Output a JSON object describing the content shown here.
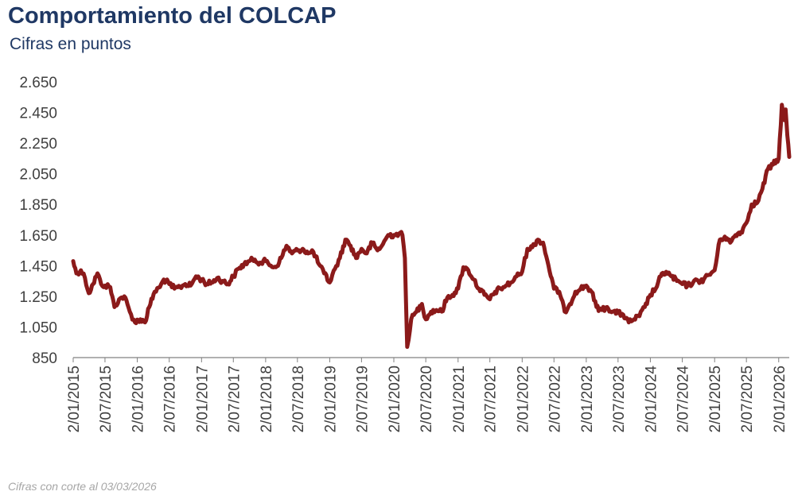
{
  "colors": {
    "title": "#1f3864",
    "line": "#8b1a1a",
    "axis": "#808080",
    "tick_text": "#404040",
    "footnote": "#a6a6a6"
  },
  "chart_data": {
    "type": "line",
    "title": "Comportamiento del COLCAP",
    "subtitle": "Cifras en puntos",
    "footnote": "Cifras con corte al 03/03/2026",
    "ylim": [
      850,
      2650
    ],
    "yticks": [
      850,
      1050,
      1250,
      1450,
      1650,
      1850,
      2050,
      2250,
      2450,
      2650
    ],
    "ytick_labels": [
      "850",
      "1.050",
      "1.250",
      "1.450",
      "1.650",
      "1.850",
      "2.050",
      "2.250",
      "2.450",
      "2.650"
    ],
    "xlim": [
      "2015-01-02",
      "2026-03-03"
    ],
    "xticks": [
      "2015-01-02",
      "2015-07-02",
      "2016-01-02",
      "2016-07-02",
      "2017-01-02",
      "2017-07-02",
      "2018-01-02",
      "2018-07-02",
      "2019-01-02",
      "2019-07-02",
      "2020-01-02",
      "2020-07-02",
      "2021-01-02",
      "2021-07-02",
      "2022-01-02",
      "2022-07-02",
      "2023-01-02",
      "2023-07-02",
      "2024-01-02",
      "2024-07-02",
      "2025-01-02",
      "2025-07-02",
      "2026-01-02"
    ],
    "xtick_labels": [
      "2/01/2015",
      "2/07/2015",
      "2/01/2016",
      "2/07/2016",
      "2/01/2017",
      "2/07/2017",
      "2/01/2018",
      "2/07/2018",
      "2/01/2019",
      "2/07/2019",
      "2/01/2020",
      "2/07/2020",
      "2/01/2021",
      "2/07/2021",
      "2/01/2022",
      "2/07/2022",
      "2/01/2023",
      "2/07/2023",
      "2/01/2024",
      "2/07/2024",
      "2/01/2025",
      "2/07/2025",
      "2/01/2026"
    ],
    "grid": false,
    "series": [
      {
        "points": [
          [
            "2015-01-02",
            1480
          ],
          [
            "2015-01-20",
            1400
          ],
          [
            "2015-02-15",
            1420
          ],
          [
            "2015-03-10",
            1370
          ],
          [
            "2015-04-01",
            1270
          ],
          [
            "2015-04-25",
            1330
          ],
          [
            "2015-05-20",
            1400
          ],
          [
            "2015-06-10",
            1330
          ],
          [
            "2015-07-02",
            1320
          ],
          [
            "2015-08-01",
            1310
          ],
          [
            "2015-08-25",
            1180
          ],
          [
            "2015-09-20",
            1230
          ],
          [
            "2015-10-20",
            1250
          ],
          [
            "2015-11-20",
            1150
          ],
          [
            "2015-12-20",
            1080
          ],
          [
            "2016-01-20",
            1100
          ],
          [
            "2016-02-15",
            1080
          ],
          [
            "2016-03-10",
            1180
          ],
          [
            "2016-04-10",
            1280
          ],
          [
            "2016-05-10",
            1310
          ],
          [
            "2016-06-01",
            1360
          ],
          [
            "2016-07-02",
            1330
          ],
          [
            "2016-08-01",
            1300
          ],
          [
            "2016-09-01",
            1310
          ],
          [
            "2016-10-01",
            1330
          ],
          [
            "2016-11-01",
            1320
          ],
          [
            "2016-12-01",
            1380
          ],
          [
            "2017-01-02",
            1360
          ],
          [
            "2017-02-01",
            1330
          ],
          [
            "2017-03-01",
            1340
          ],
          [
            "2017-04-01",
            1370
          ],
          [
            "2017-05-01",
            1350
          ],
          [
            "2017-06-01",
            1330
          ],
          [
            "2017-07-02",
            1380
          ],
          [
            "2017-08-01",
            1430
          ],
          [
            "2017-09-01",
            1460
          ],
          [
            "2017-10-01",
            1480
          ],
          [
            "2017-11-01",
            1490
          ],
          [
            "2017-12-01",
            1470
          ],
          [
            "2018-01-02",
            1480
          ],
          [
            "2018-02-01",
            1450
          ],
          [
            "2018-03-01",
            1440
          ],
          [
            "2018-04-01",
            1500
          ],
          [
            "2018-05-01",
            1580
          ],
          [
            "2018-06-01",
            1530
          ],
          [
            "2018-07-02",
            1550
          ],
          [
            "2018-08-01",
            1560
          ],
          [
            "2018-09-01",
            1530
          ],
          [
            "2018-10-01",
            1540
          ],
          [
            "2018-11-01",
            1460
          ],
          [
            "2018-12-01",
            1400
          ],
          [
            "2019-01-02",
            1340
          ],
          [
            "2019-02-01",
            1430
          ],
          [
            "2019-03-01",
            1500
          ],
          [
            "2019-04-01",
            1620
          ],
          [
            "2019-05-01",
            1580
          ],
          [
            "2019-06-01",
            1500
          ],
          [
            "2019-07-02",
            1560
          ],
          [
            "2019-08-01",
            1530
          ],
          [
            "2019-09-01",
            1600
          ],
          [
            "2019-10-01",
            1550
          ],
          [
            "2019-11-01",
            1590
          ],
          [
            "2019-12-01",
            1650
          ],
          [
            "2020-01-02",
            1650
          ],
          [
            "2020-02-01",
            1660
          ],
          [
            "2020-02-20",
            1650
          ],
          [
            "2020-03-05",
            1500
          ],
          [
            "2020-03-18",
            920
          ],
          [
            "2020-04-10",
            1100
          ],
          [
            "2020-05-10",
            1150
          ],
          [
            "2020-06-10",
            1200
          ],
          [
            "2020-07-02",
            1100
          ],
          [
            "2020-08-01",
            1150
          ],
          [
            "2020-09-01",
            1160
          ],
          [
            "2020-10-01",
            1150
          ],
          [
            "2020-11-01",
            1240
          ],
          [
            "2020-12-01",
            1260
          ],
          [
            "2021-01-02",
            1300
          ],
          [
            "2021-02-01",
            1440
          ],
          [
            "2021-03-01",
            1420
          ],
          [
            "2021-04-01",
            1360
          ],
          [
            "2021-05-01",
            1300
          ],
          [
            "2021-06-01",
            1260
          ],
          [
            "2021-07-02",
            1230
          ],
          [
            "2021-08-01",
            1280
          ],
          [
            "2021-09-01",
            1300
          ],
          [
            "2021-10-01",
            1320
          ],
          [
            "2021-11-01",
            1340
          ],
          [
            "2021-12-01",
            1380
          ],
          [
            "2022-01-02",
            1410
          ],
          [
            "2022-02-01",
            1560
          ],
          [
            "2022-03-01",
            1570
          ],
          [
            "2022-04-01",
            1620
          ],
          [
            "2022-05-01",
            1600
          ],
          [
            "2022-06-01",
            1450
          ],
          [
            "2022-07-02",
            1300
          ],
          [
            "2022-08-01",
            1280
          ],
          [
            "2022-09-01",
            1150
          ],
          [
            "2022-10-01",
            1200
          ],
          [
            "2022-11-01",
            1280
          ],
          [
            "2022-12-01",
            1300
          ],
          [
            "2023-01-02",
            1320
          ],
          [
            "2023-02-01",
            1280
          ],
          [
            "2023-03-01",
            1180
          ],
          [
            "2023-04-01",
            1160
          ],
          [
            "2023-05-01",
            1180
          ],
          [
            "2023-06-01",
            1150
          ],
          [
            "2023-07-02",
            1140
          ],
          [
            "2023-08-01",
            1130
          ],
          [
            "2023-09-01",
            1080
          ],
          [
            "2023-10-01",
            1100
          ],
          [
            "2023-11-01",
            1120
          ],
          [
            "2023-12-01",
            1180
          ],
          [
            "2024-01-02",
            1260
          ],
          [
            "2024-02-01",
            1300
          ],
          [
            "2024-03-01",
            1380
          ],
          [
            "2024-04-01",
            1410
          ],
          [
            "2024-05-01",
            1380
          ],
          [
            "2024-06-01",
            1350
          ],
          [
            "2024-07-02",
            1330
          ],
          [
            "2024-08-01",
            1320
          ],
          [
            "2024-09-01",
            1340
          ],
          [
            "2024-10-01",
            1350
          ],
          [
            "2024-11-01",
            1360
          ],
          [
            "2024-12-01",
            1390
          ],
          [
            "2025-01-02",
            1420
          ],
          [
            "2025-02-01",
            1620
          ],
          [
            "2025-03-01",
            1640
          ],
          [
            "2025-04-01",
            1600
          ],
          [
            "2025-05-01",
            1650
          ],
          [
            "2025-06-01",
            1670
          ],
          [
            "2025-07-02",
            1730
          ],
          [
            "2025-08-01",
            1850
          ],
          [
            "2025-09-01",
            1860
          ],
          [
            "2025-10-01",
            1950
          ],
          [
            "2025-11-01",
            2080
          ],
          [
            "2025-12-01",
            2110
          ],
          [
            "2026-01-02",
            2150
          ],
          [
            "2026-01-20",
            2500
          ],
          [
            "2026-02-01",
            2400
          ],
          [
            "2026-02-10",
            2470
          ],
          [
            "2026-02-20",
            2300
          ],
          [
            "2026-03-03",
            2160
          ]
        ]
      }
    ]
  }
}
